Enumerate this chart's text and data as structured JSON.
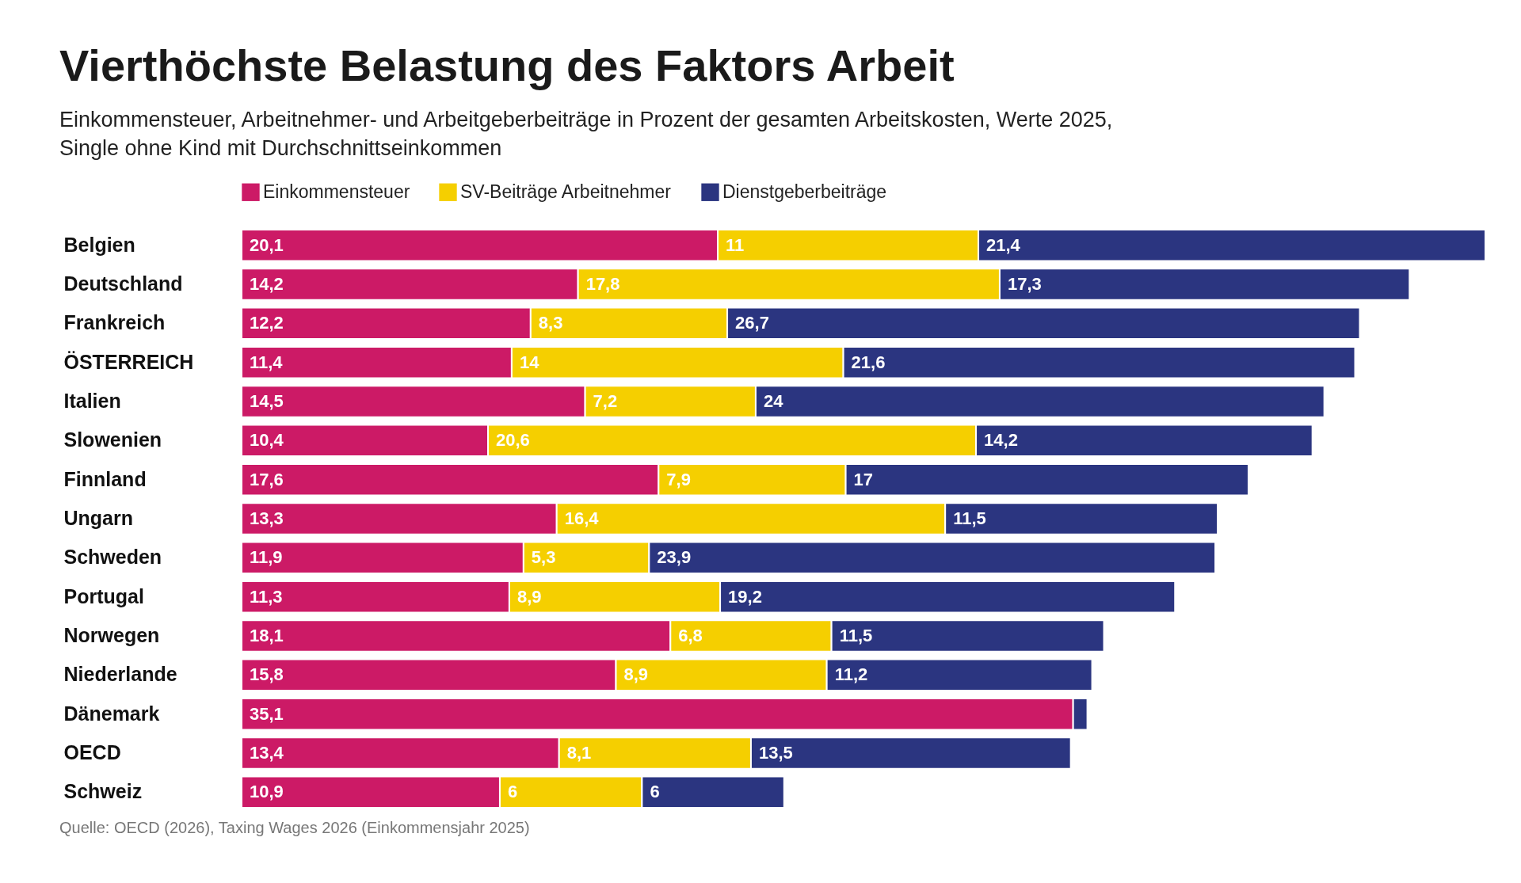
{
  "chart_data": {
    "type": "bar",
    "orientation": "horizontal",
    "stacked": true,
    "title": "Vierthöchste Belastung des Faktors Arbeit",
    "subtitle": "Einkommensteuer, Arbeitnehmer- und Arbeitgeberbeiträge in Prozent der gesamten Arbeitskosten, Werte 2025, Single ohne Kind mit Durchschnittseinkommen",
    "categories": [
      "Belgien",
      "Deutschland",
      "Frankreich",
      "ÖSTERREICH",
      "Italien",
      "Slowenien",
      "Finnland",
      "Ungarn",
      "Schweden",
      "Portugal",
      "Norwegen",
      "Niederlande",
      "Dänemark",
      "OECD",
      "Schweiz"
    ],
    "series": [
      {
        "name": "Einkommensteuer",
        "color": "#cc1a66",
        "values": [
          20.1,
          14.2,
          12.2,
          11.4,
          14.5,
          10.4,
          17.6,
          13.3,
          11.9,
          11.3,
          18.1,
          15.8,
          35.1,
          13.4,
          10.9
        ],
        "value_labels": [
          "20,1",
          "14,2",
          "12,2",
          "11,4",
          "14,5",
          "10,4",
          "17,6",
          "13,3",
          "11,9",
          "11,3",
          "18,1",
          "15,8",
          "35,1",
          "13,4",
          "10,9"
        ]
      },
      {
        "name": "SV-Beiträge Arbeitnehmer",
        "color": "#f5cf00",
        "values": [
          11,
          17.8,
          8.3,
          14,
          7.2,
          20.6,
          7.9,
          16.4,
          5.3,
          8.9,
          6.8,
          8.9,
          null,
          8.1,
          6
        ],
        "value_labels": [
          "11",
          "17,8",
          "8,3",
          "14",
          "7,2",
          "20,6",
          "7,9",
          "16,4",
          "5,3",
          "8,9",
          "6,8",
          "8,9",
          null,
          "8,1",
          "6"
        ]
      },
      {
        "name": "Dienstgeberbeiträge",
        "color": "#2b3580",
        "values": [
          21.4,
          17.3,
          26.7,
          21.6,
          24,
          14.2,
          17,
          11.5,
          23.9,
          19.2,
          11.5,
          11.2,
          0.6,
          13.5,
          6
        ],
        "value_labels": [
          "21,4",
          "17,3",
          "26,7",
          "21,6",
          "24",
          "14,2",
          "17",
          "11,5",
          "23,9",
          "19,2",
          "11,5",
          "11,2",
          null,
          "13,5",
          "6"
        ]
      }
    ],
    "legend": "top left",
    "annotations": [
      "Quelle: OECD (2026), Taxing Wages 2026 (Einkommensjahr 2025)"
    ]
  }
}
